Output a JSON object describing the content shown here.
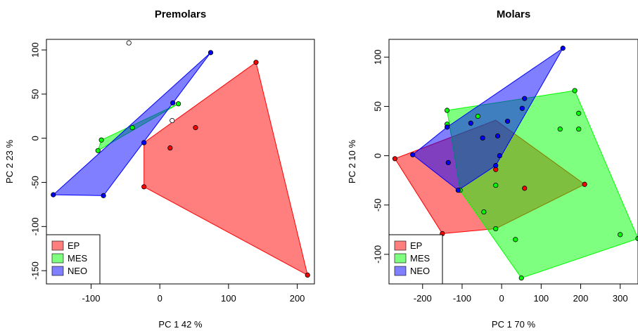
{
  "chart_data": [
    {
      "type": "scatter",
      "title": "Premolars",
      "xlabel": "PC 1   42 %",
      "ylabel": "PC 2   23 %",
      "xlim": [
        -165,
        225
      ],
      "ylim": [
        -165,
        112
      ],
      "xticks": [
        -100,
        0,
        100,
        200
      ],
      "yticks": [
        -150,
        -100,
        -50,
        0,
        50,
        100
      ],
      "legend_position": "bottom-left",
      "series": [
        {
          "name": "EP",
          "color": "#ff0000",
          "points": [
            [
              140,
              86
            ],
            [
              52,
              12
            ],
            [
              15,
              -11
            ],
            [
              -23,
              -5
            ],
            [
              -23,
              -55
            ],
            [
              215,
              -155
            ]
          ],
          "hull": [
            [
              140,
              86
            ],
            [
              -23,
              -5
            ],
            [
              -23,
              -55
            ],
            [
              215,
              -155
            ]
          ]
        },
        {
          "name": "MES",
          "color": "#00ff00",
          "points": [
            [
              27,
              39
            ],
            [
              -40,
              12
            ],
            [
              -85,
              -2
            ],
            [
              -90,
              -14
            ]
          ],
          "hull": [
            [
              27,
              39
            ],
            [
              -85,
              -2
            ],
            [
              -90,
              -14
            ]
          ]
        },
        {
          "name": "NEO",
          "color": "#0000ff",
          "points": [
            [
              74,
              97
            ],
            [
              19,
              40
            ],
            [
              -23,
              -5
            ],
            [
              -82,
              -65
            ],
            [
              -155,
              -64
            ]
          ],
          "hull": [
            [
              74,
              97
            ],
            [
              -155,
              -64
            ],
            [
              -82,
              -65
            ]
          ]
        }
      ],
      "extra_points": [
        [
          -45,
          108
        ],
        [
          18,
          20
        ]
      ]
    },
    {
      "type": "scatter",
      "title": "Molars",
      "xlabel": "PC 1   70 %",
      "ylabel": "PC 2   10 %",
      "xlim": [
        -285,
        345
      ],
      "ylim": [
        -130,
        118
      ],
      "xticks": [
        -200,
        -100,
        0,
        100,
        200,
        300
      ],
      "yticks": [
        -100,
        -50,
        0,
        50,
        100
      ],
      "legend_position": "bottom-left",
      "series": [
        {
          "name": "EP",
          "color": "#ff0000",
          "points": [
            [
              -270,
              -3
            ],
            [
              -150,
              -79
            ],
            [
              -15,
              -14
            ],
            [
              58,
              -33
            ],
            [
              210,
              -29
            ]
          ],
          "hull": [
            [
              -270,
              -3
            ],
            [
              -150,
              -79
            ],
            [
              -15,
              -74
            ],
            [
              210,
              -29
            ],
            [
              -15,
              36
            ]
          ]
        },
        {
          "name": "MES",
          "color": "#00ff00",
          "points": [
            [
              -138,
              46
            ],
            [
              -138,
              32
            ],
            [
              -60,
              40
            ],
            [
              185,
              66
            ],
            [
              195,
              43
            ],
            [
              148,
              27
            ],
            [
              195,
              27
            ],
            [
              -15,
              -30
            ],
            [
              -105,
              -35
            ],
            [
              -45,
              -57
            ],
            [
              -15,
              -74
            ],
            [
              35,
              -85
            ],
            [
              50,
              -124
            ],
            [
              300,
              -80
            ],
            [
              345,
              -84
            ]
          ],
          "hull": [
            [
              -138,
              46
            ],
            [
              185,
              66
            ],
            [
              345,
              -84
            ],
            [
              50,
              -124
            ],
            [
              -105,
              -35
            ]
          ]
        },
        {
          "name": "NEO",
          "color": "#0000ff",
          "points": [
            [
              155,
              109
            ],
            [
              58,
              58
            ],
            [
              52,
              48
            ],
            [
              -78,
              33
            ],
            [
              -48,
              18
            ],
            [
              -10,
              20
            ],
            [
              -5,
              0
            ],
            [
              -138,
              29
            ],
            [
              -225,
              1
            ],
            [
              -135,
              -7
            ],
            [
              -110,
              -35
            ],
            [
              -15,
              -10
            ],
            [
              15,
              35
            ]
          ],
          "hull": [
            [
              155,
              109
            ],
            [
              -138,
              29
            ],
            [
              -225,
              1
            ],
            [
              -110,
              -35
            ],
            [
              -15,
              -10
            ]
          ]
        }
      ],
      "extra_points": []
    }
  ]
}
